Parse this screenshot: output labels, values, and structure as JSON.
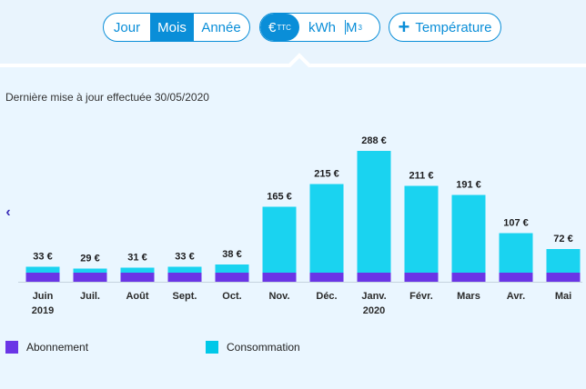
{
  "toolbar": {
    "period_options": [
      "Jour",
      "Mois",
      "Année"
    ],
    "active_period": "Mois",
    "unit_options": [
      "€",
      "kWh",
      "M"
    ],
    "euro_sup": "TTC",
    "m3_sup": "3",
    "temperature_label": "Température",
    "temperature_icon": "plus-icon"
  },
  "header": {
    "update_text": "Dernière mise à jour effectuée 30/05/2020"
  },
  "nav": {
    "prev_icon": "chevron-left-icon",
    "prev_glyph": "‹"
  },
  "colors": {
    "accent": "#0a8ed8",
    "abonnement": "#6a35e6",
    "consommation": "#00c8e8",
    "consommation_top": "#1ad3f0"
  },
  "legend": {
    "abonnement_label": "Abonnement",
    "consommation_label": "Consommation"
  },
  "chart_data": {
    "type": "bar",
    "stacked": true,
    "categories": [
      "Juin",
      "Juil.",
      "Août",
      "Sept.",
      "Oct.",
      "Nov.",
      "Déc.",
      "Janv.",
      "Févr.",
      "Mars",
      "Avr.",
      "Mai"
    ],
    "year_labels": [
      {
        "index": 0,
        "label": "2019"
      },
      {
        "index": 7,
        "label": "2020"
      }
    ],
    "totals_labels": [
      "33 €",
      "29 €",
      "31 €",
      "33 €",
      "38 €",
      "165 €",
      "215 €",
      "288 €",
      "211 €",
      "191 €",
      "107 €",
      "72 €"
    ],
    "series": [
      {
        "name": "Abonnement",
        "values": [
          20,
          20,
          20,
          20,
          20,
          20,
          20,
          20,
          20,
          20,
          20,
          20
        ]
      },
      {
        "name": "Consommation",
        "values": [
          13,
          9,
          11,
          13,
          18,
          145,
          195,
          268,
          191,
          171,
          87,
          52
        ]
      }
    ],
    "ylim": [
      0,
      300
    ],
    "grid": false,
    "legend_position": "bottom-left"
  }
}
